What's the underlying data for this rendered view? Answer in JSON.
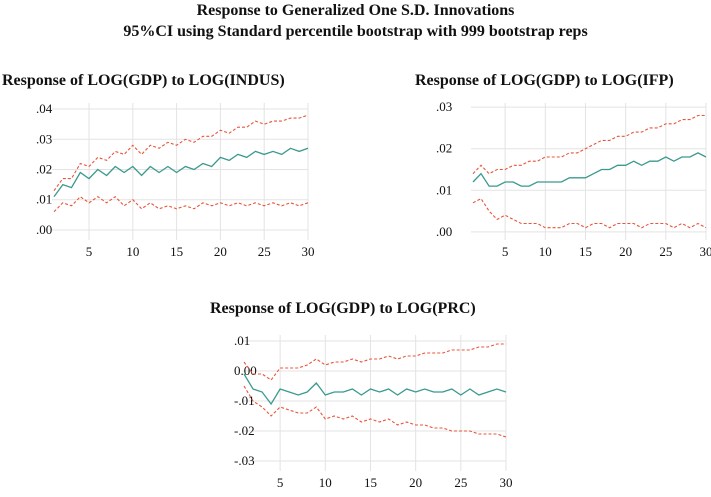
{
  "title": "Response to Generalized One S.D. Innovations",
  "subtitle": "95%CI using Standard percentile bootstrap with 999 bootstrap reps",
  "colors": {
    "response": "#3a9a8e",
    "ci": "#e8553a",
    "grid": "#e3e3e3"
  },
  "chart_data": [
    {
      "type": "line",
      "title": "Response of LOG(GDP) to LOG(INDUS)",
      "x": [
        1,
        2,
        3,
        4,
        5,
        6,
        7,
        8,
        9,
        10,
        11,
        12,
        13,
        14,
        15,
        16,
        17,
        18,
        19,
        20,
        21,
        22,
        23,
        24,
        25,
        26,
        27,
        28,
        29,
        30
      ],
      "xticks": [
        5,
        10,
        15,
        20,
        25,
        30
      ],
      "yticks": [
        0.0,
        0.01,
        0.02,
        0.03,
        0.04
      ],
      "ytick_labels": [
        ".00",
        ".01",
        ".02",
        ".03",
        ".04"
      ],
      "ylim": [
        -0.002,
        0.042
      ],
      "series": [
        {
          "name": "Response",
          "style": "solid",
          "values": [
            0.011,
            0.015,
            0.014,
            0.019,
            0.017,
            0.02,
            0.018,
            0.021,
            0.019,
            0.021,
            0.018,
            0.021,
            0.019,
            0.021,
            0.019,
            0.021,
            0.02,
            0.022,
            0.021,
            0.024,
            0.023,
            0.025,
            0.024,
            0.026,
            0.025,
            0.026,
            0.025,
            0.027,
            0.026,
            0.027
          ]
        },
        {
          "name": "Upper 95% CI",
          "style": "dashed",
          "values": [
            0.013,
            0.017,
            0.017,
            0.022,
            0.021,
            0.024,
            0.023,
            0.026,
            0.025,
            0.028,
            0.025,
            0.028,
            0.027,
            0.029,
            0.028,
            0.03,
            0.029,
            0.031,
            0.031,
            0.033,
            0.032,
            0.034,
            0.034,
            0.036,
            0.035,
            0.036,
            0.036,
            0.037,
            0.037,
            0.038
          ]
        },
        {
          "name": "Lower 95% CI",
          "style": "dashed",
          "values": [
            0.006,
            0.009,
            0.008,
            0.011,
            0.009,
            0.011,
            0.009,
            0.011,
            0.008,
            0.01,
            0.007,
            0.009,
            0.007,
            0.008,
            0.007,
            0.008,
            0.007,
            0.009,
            0.008,
            0.009,
            0.008,
            0.009,
            0.008,
            0.009,
            0.008,
            0.009,
            0.008,
            0.009,
            0.008,
            0.009
          ]
        }
      ]
    },
    {
      "type": "line",
      "title": "Response of LOG(GDP) to LOG(IFP)",
      "x": [
        1,
        2,
        3,
        4,
        5,
        6,
        7,
        8,
        9,
        10,
        11,
        12,
        13,
        14,
        15,
        16,
        17,
        18,
        19,
        20,
        21,
        22,
        23,
        24,
        25,
        26,
        27,
        28,
        29,
        30
      ],
      "xticks": [
        5,
        10,
        15,
        20,
        25,
        30
      ],
      "yticks": [
        0.0,
        0.01,
        0.02,
        0.03
      ],
      "ytick_labels": [
        ".00",
        ".01",
        ".02",
        ".03"
      ],
      "ylim": [
        -0.001,
        0.031
      ],
      "series": [
        {
          "name": "Response",
          "style": "solid",
          "values": [
            0.012,
            0.014,
            0.011,
            0.011,
            0.012,
            0.012,
            0.011,
            0.011,
            0.012,
            0.012,
            0.012,
            0.012,
            0.013,
            0.013,
            0.013,
            0.014,
            0.015,
            0.015,
            0.016,
            0.016,
            0.017,
            0.016,
            0.017,
            0.017,
            0.018,
            0.017,
            0.018,
            0.018,
            0.019,
            0.018
          ]
        },
        {
          "name": "Upper 95% CI",
          "style": "dashed",
          "values": [
            0.014,
            0.016,
            0.014,
            0.015,
            0.015,
            0.016,
            0.016,
            0.017,
            0.017,
            0.018,
            0.018,
            0.018,
            0.019,
            0.019,
            0.02,
            0.021,
            0.022,
            0.022,
            0.023,
            0.023,
            0.024,
            0.024,
            0.025,
            0.025,
            0.026,
            0.026,
            0.027,
            0.027,
            0.028,
            0.028
          ]
        },
        {
          "name": "Lower 95% CI",
          "style": "dashed",
          "values": [
            0.007,
            0.008,
            0.005,
            0.003,
            0.004,
            0.003,
            0.002,
            0.002,
            0.002,
            0.001,
            0.001,
            0.001,
            0.002,
            0.002,
            0.001,
            0.002,
            0.002,
            0.001,
            0.002,
            0.002,
            0.002,
            0.001,
            0.002,
            0.002,
            0.002,
            0.001,
            0.002,
            0.001,
            0.002,
            0.001
          ]
        }
      ]
    },
    {
      "type": "line",
      "title": "Response of LOG(GDP) to LOG(PRC)",
      "x": [
        1,
        2,
        3,
        4,
        5,
        6,
        7,
        8,
        9,
        10,
        11,
        12,
        13,
        14,
        15,
        16,
        17,
        18,
        19,
        20,
        21,
        22,
        23,
        24,
        25,
        26,
        27,
        28,
        29,
        30
      ],
      "xticks": [
        5,
        10,
        15,
        20,
        25,
        30
      ],
      "yticks": [
        -0.03,
        -0.02,
        -0.01,
        0.0,
        0.01
      ],
      "ytick_labels": [
        "-.03",
        "-.02",
        "-.01",
        "0.00",
        ".01"
      ],
      "ylim": [
        -0.032,
        0.012
      ],
      "series": [
        {
          "name": "Response",
          "style": "solid",
          "values": [
            -0.001,
            -0.006,
            -0.007,
            -0.011,
            -0.006,
            -0.007,
            -0.008,
            -0.007,
            -0.004,
            -0.008,
            -0.007,
            -0.007,
            -0.006,
            -0.008,
            -0.006,
            -0.007,
            -0.006,
            -0.008,
            -0.006,
            -0.007,
            -0.006,
            -0.007,
            -0.007,
            -0.006,
            -0.008,
            -0.006,
            -0.008,
            -0.007,
            -0.006,
            -0.007
          ]
        },
        {
          "name": "Upper 95% CI",
          "style": "dashed",
          "values": [
            0.003,
            -0.001,
            -0.001,
            -0.003,
            0.001,
            0.001,
            0.001,
            0.002,
            0.004,
            0.002,
            0.003,
            0.003,
            0.004,
            0.003,
            0.004,
            0.004,
            0.005,
            0.004,
            0.005,
            0.005,
            0.006,
            0.006,
            0.006,
            0.007,
            0.007,
            0.007,
            0.008,
            0.008,
            0.009,
            0.009
          ]
        },
        {
          "name": "Lower 95% CI",
          "style": "dashed",
          "values": [
            -0.005,
            -0.01,
            -0.012,
            -0.015,
            -0.012,
            -0.013,
            -0.014,
            -0.014,
            -0.012,
            -0.016,
            -0.015,
            -0.016,
            -0.015,
            -0.017,
            -0.016,
            -0.017,
            -0.016,
            -0.018,
            -0.017,
            -0.018,
            -0.018,
            -0.019,
            -0.019,
            -0.02,
            -0.02,
            -0.02,
            -0.021,
            -0.021,
            -0.021,
            -0.022
          ]
        }
      ]
    }
  ]
}
